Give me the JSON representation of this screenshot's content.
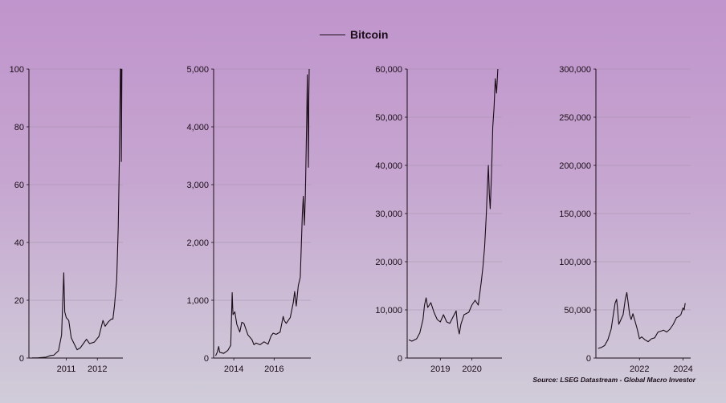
{
  "legend": {
    "label": "Bitcoin",
    "line_color": "#1a0d17"
  },
  "source": "Source: LSEG Datastream - Global Macro Investor",
  "chart_data": [
    {
      "type": "line",
      "series": [
        {
          "name": "Bitcoin",
          "values": [
            [
              2010.4,
              0.05
            ],
            [
              2010.6,
              0.07
            ],
            [
              2010.85,
              0.3
            ],
            [
              2011.0,
              0.9
            ],
            [
              2011.1,
              1.0
            ],
            [
              2011.25,
              2.5
            ],
            [
              2011.35,
              8.0
            ],
            [
              2011.42,
              29.5
            ],
            [
              2011.45,
              16.0
            ],
            [
              2011.5,
              14.0
            ],
            [
              2011.58,
              13.0
            ],
            [
              2011.66,
              7.0
            ],
            [
              2011.75,
              5.0
            ],
            [
              2011.85,
              2.9
            ],
            [
              2011.95,
              3.5
            ],
            [
              2012.05,
              5.0
            ],
            [
              2012.15,
              6.5
            ],
            [
              2012.25,
              5.0
            ],
            [
              2012.4,
              5.5
            ],
            [
              2012.55,
              7.5
            ],
            [
              2012.62,
              10.5
            ],
            [
              2012.68,
              13.0
            ],
            [
              2012.75,
              11.0
            ],
            [
              2012.85,
              12.5
            ],
            [
              2012.95,
              13.5
            ],
            [
              2013.0,
              13.5
            ],
            [
              2013.05,
              18.0
            ],
            [
              2013.12,
              27.0
            ],
            [
              2013.17,
              45.0
            ],
            [
              2013.21,
              70.0
            ],
            [
              2013.24,
              100.0
            ],
            [
              2013.26,
              100.0
            ],
            [
              2013.27,
              68.0
            ],
            [
              2013.29,
              100.0
            ]
          ]
        }
      ],
      "xticks": [
        "2011",
        "2012"
      ],
      "xtick_values": [
        2011.5,
        2012.5
      ],
      "xlim": [
        2010.3,
        2013.32
      ],
      "ylim": [
        0,
        100
      ],
      "yticks": [
        "0",
        "20",
        "40",
        "60",
        "80",
        "100"
      ],
      "ytick_values": [
        0,
        20,
        40,
        60,
        80,
        100
      ]
    },
    {
      "type": "line",
      "series": [
        {
          "name": "Bitcoin",
          "values": [
            [
              2013.1,
              40
            ],
            [
              2013.18,
              100
            ],
            [
              2013.25,
              200
            ],
            [
              2013.3,
              100
            ],
            [
              2013.5,
              80
            ],
            [
              2013.7,
              130
            ],
            [
              2013.85,
              220
            ],
            [
              2013.92,
              1130
            ],
            [
              2013.96,
              750
            ],
            [
              2014.05,
              800
            ],
            [
              2014.15,
              580
            ],
            [
              2014.3,
              450
            ],
            [
              2014.4,
              620
            ],
            [
              2014.5,
              600
            ],
            [
              2014.7,
              400
            ],
            [
              2014.9,
              320
            ],
            [
              2015.0,
              230
            ],
            [
              2015.1,
              260
            ],
            [
              2015.3,
              230
            ],
            [
              2015.5,
              280
            ],
            [
              2015.7,
              240
            ],
            [
              2015.85,
              380
            ],
            [
              2015.95,
              430
            ],
            [
              2016.1,
              410
            ],
            [
              2016.3,
              450
            ],
            [
              2016.45,
              720
            ],
            [
              2016.5,
              650
            ],
            [
              2016.6,
              600
            ],
            [
              2016.8,
              700
            ],
            [
              2016.95,
              960
            ],
            [
              2017.02,
              1150
            ],
            [
              2017.1,
              900
            ],
            [
              2017.2,
              1250
            ],
            [
              2017.3,
              1400
            ],
            [
              2017.4,
              2500
            ],
            [
              2017.45,
              2800
            ],
            [
              2017.5,
              2300
            ],
            [
              2017.55,
              2800
            ],
            [
              2017.62,
              4200
            ],
            [
              2017.65,
              4900
            ],
            [
              2017.68,
              4000
            ],
            [
              2017.7,
              3300
            ],
            [
              2017.72,
              4500
            ],
            [
              2017.74,
              5000
            ]
          ]
        }
      ],
      "xticks": [
        "2014",
        "2016"
      ],
      "xtick_values": [
        2014.0,
        2016.0
      ],
      "xlim": [
        2013.0,
        2017.82
      ],
      "ylim": [
        0,
        5000
      ],
      "yticks": [
        "0",
        "1,000",
        "2,000",
        "3,000",
        "4,000",
        "5,000"
      ],
      "ytick_values": [
        0,
        1000,
        2000,
        3000,
        4000,
        5000
      ]
    },
    {
      "type": "line",
      "series": [
        {
          "name": "Bitcoin",
          "values": [
            [
              2018.0,
              3800
            ],
            [
              2018.1,
              3500
            ],
            [
              2018.25,
              4000
            ],
            [
              2018.35,
              5200
            ],
            [
              2018.45,
              8000
            ],
            [
              2018.5,
              11000
            ],
            [
              2018.55,
              12500
            ],
            [
              2018.6,
              10500
            ],
            [
              2018.7,
              11500
            ],
            [
              2018.8,
              9500
            ],
            [
              2018.9,
              8000
            ],
            [
              2019.0,
              7500
            ],
            [
              2019.1,
              9000
            ],
            [
              2019.2,
              7500
            ],
            [
              2019.3,
              7200
            ],
            [
              2019.4,
              8500
            ],
            [
              2019.5,
              9800
            ],
            [
              2019.55,
              6500
            ],
            [
              2019.6,
              5000
            ],
            [
              2019.65,
              7000
            ],
            [
              2019.75,
              9000
            ],
            [
              2019.9,
              9500
            ],
            [
              2020.0,
              11000
            ],
            [
              2020.1,
              12000
            ],
            [
              2020.2,
              11000
            ],
            [
              2020.25,
              13500
            ],
            [
              2020.3,
              16000
            ],
            [
              2020.35,
              19000
            ],
            [
              2020.4,
              23000
            ],
            [
              2020.45,
              29000
            ],
            [
              2020.5,
              37000
            ],
            [
              2020.52,
              40000
            ],
            [
              2020.55,
              34000
            ],
            [
              2020.58,
              31000
            ],
            [
              2020.62,
              38000
            ],
            [
              2020.66,
              48000
            ],
            [
              2020.7,
              52000
            ],
            [
              2020.74,
              58000
            ],
            [
              2020.78,
              55000
            ],
            [
              2020.82,
              60000
            ]
          ]
        }
      ],
      "xticks": [
        "2019",
        "2020"
      ],
      "xtick_values": [
        2019.0,
        2020.0
      ],
      "xlim": [
        2017.95,
        2020.95
      ],
      "ylim": [
        0,
        60000
      ],
      "yticks": [
        "0",
        "10,000",
        "20,000",
        "30,000",
        "40,000",
        "50,000",
        "60,000"
      ],
      "ytick_values": [
        0,
        10000,
        20000,
        30000,
        40000,
        50000,
        60000
      ]
    },
    {
      "type": "line",
      "series": [
        {
          "name": "Bitcoin",
          "values": [
            [
              2020.1,
              10000
            ],
            [
              2020.25,
              11000
            ],
            [
              2020.4,
              13000
            ],
            [
              2020.55,
              19000
            ],
            [
              2020.7,
              30000
            ],
            [
              2020.8,
              45000
            ],
            [
              2020.88,
              57000
            ],
            [
              2020.95,
              61000
            ],
            [
              2021.0,
              50000
            ],
            [
              2021.05,
              35000
            ],
            [
              2021.15,
              40000
            ],
            [
              2021.25,
              45000
            ],
            [
              2021.35,
              61000
            ],
            [
              2021.42,
              68000
            ],
            [
              2021.48,
              58000
            ],
            [
              2021.55,
              45000
            ],
            [
              2021.62,
              40000
            ],
            [
              2021.7,
              46000
            ],
            [
              2021.8,
              38000
            ],
            [
              2021.9,
              30000
            ],
            [
              2022.0,
              20000
            ],
            [
              2022.1,
              22000
            ],
            [
              2022.25,
              19000
            ],
            [
              2022.4,
              17000
            ],
            [
              2022.55,
              20000
            ],
            [
              2022.7,
              21000
            ],
            [
              2022.85,
              27000
            ],
            [
              2023.0,
              28000
            ],
            [
              2023.1,
              29000
            ],
            [
              2023.25,
              27000
            ],
            [
              2023.4,
              30000
            ],
            [
              2023.55,
              35000
            ],
            [
              2023.7,
              42000
            ],
            [
              2023.8,
              43000
            ],
            [
              2023.9,
              45000
            ],
            [
              2024.0,
              52000
            ],
            [
              2024.05,
              50000
            ],
            [
              2024.1,
              57000
            ]
          ]
        }
      ],
      "xticks": [
        "2022",
        "2024"
      ],
      "xtick_values": [
        2022.0,
        2024.0
      ],
      "xlim": [
        2020.0,
        2024.35
      ],
      "ylim": [
        0,
        300000
      ],
      "yticks": [
        "0",
        "50,000",
        "100,000",
        "150,000",
        "200,000",
        "250,000",
        "300,000"
      ],
      "ytick_values": [
        0,
        50000,
        100000,
        150000,
        200000,
        250000,
        300000
      ]
    }
  ]
}
